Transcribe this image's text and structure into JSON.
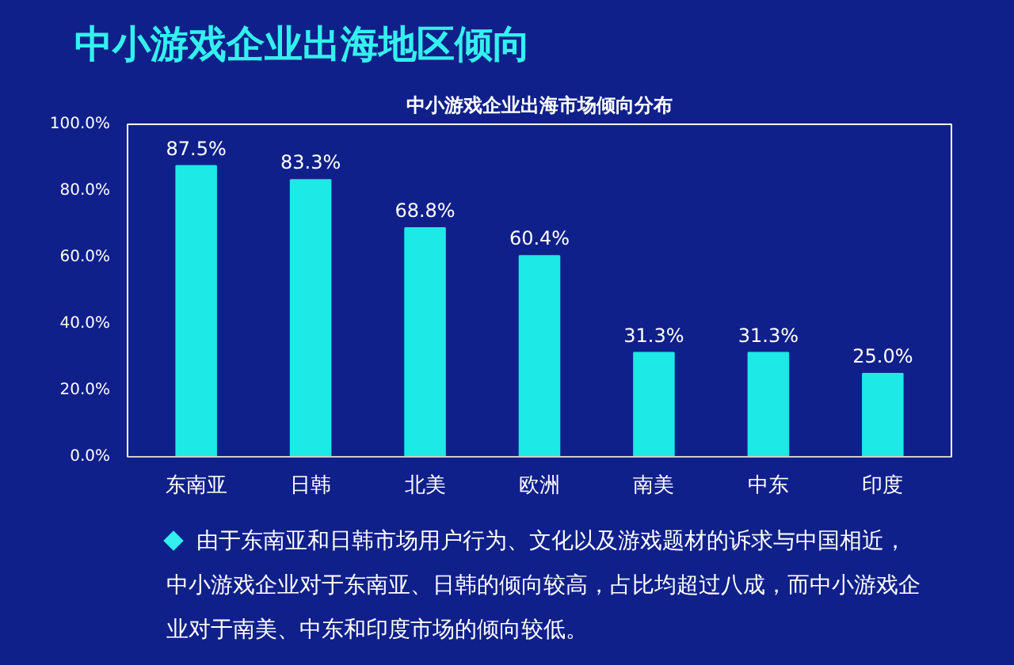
{
  "chart_data": {
    "type": "bar",
    "title": "中小游戏企业出海地区倾向",
    "subtitle": "中小游戏企业出海市场倾向分布",
    "categories": [
      "东南亚",
      "日韩",
      "北美",
      "欧洲",
      "南美",
      "中东",
      "印度"
    ],
    "values": [
      87.5,
      83.3,
      68.8,
      60.4,
      31.3,
      31.3,
      25.0
    ],
    "value_labels": [
      "87.5%",
      "83.3%",
      "68.8%",
      "60.4%",
      "31.3%",
      "31.3%",
      "25.0%"
    ],
    "color": "#1de9e6",
    "ylim": [
      0,
      100
    ],
    "yticks": [
      {
        "value": 0,
        "label": "0.0%"
      },
      {
        "value": 20,
        "label": "20.0%"
      },
      {
        "value": 40,
        "label": "40.0%"
      },
      {
        "value": 60,
        "label": "60.0%"
      },
      {
        "value": 80,
        "label": "80.0%"
      },
      {
        "value": 100,
        "label": "100.0%"
      }
    ],
    "grid": false,
    "annotations": [
      "由于东南亚和日韩市场用户行为、文化以及游戏题材的诉求与中国相近，中小游戏企业对于东南亚、日韩的倾向较高，占比均超过八成，而中小游戏企业对于南美、中东和印度市场的倾向较低。"
    ]
  }
}
